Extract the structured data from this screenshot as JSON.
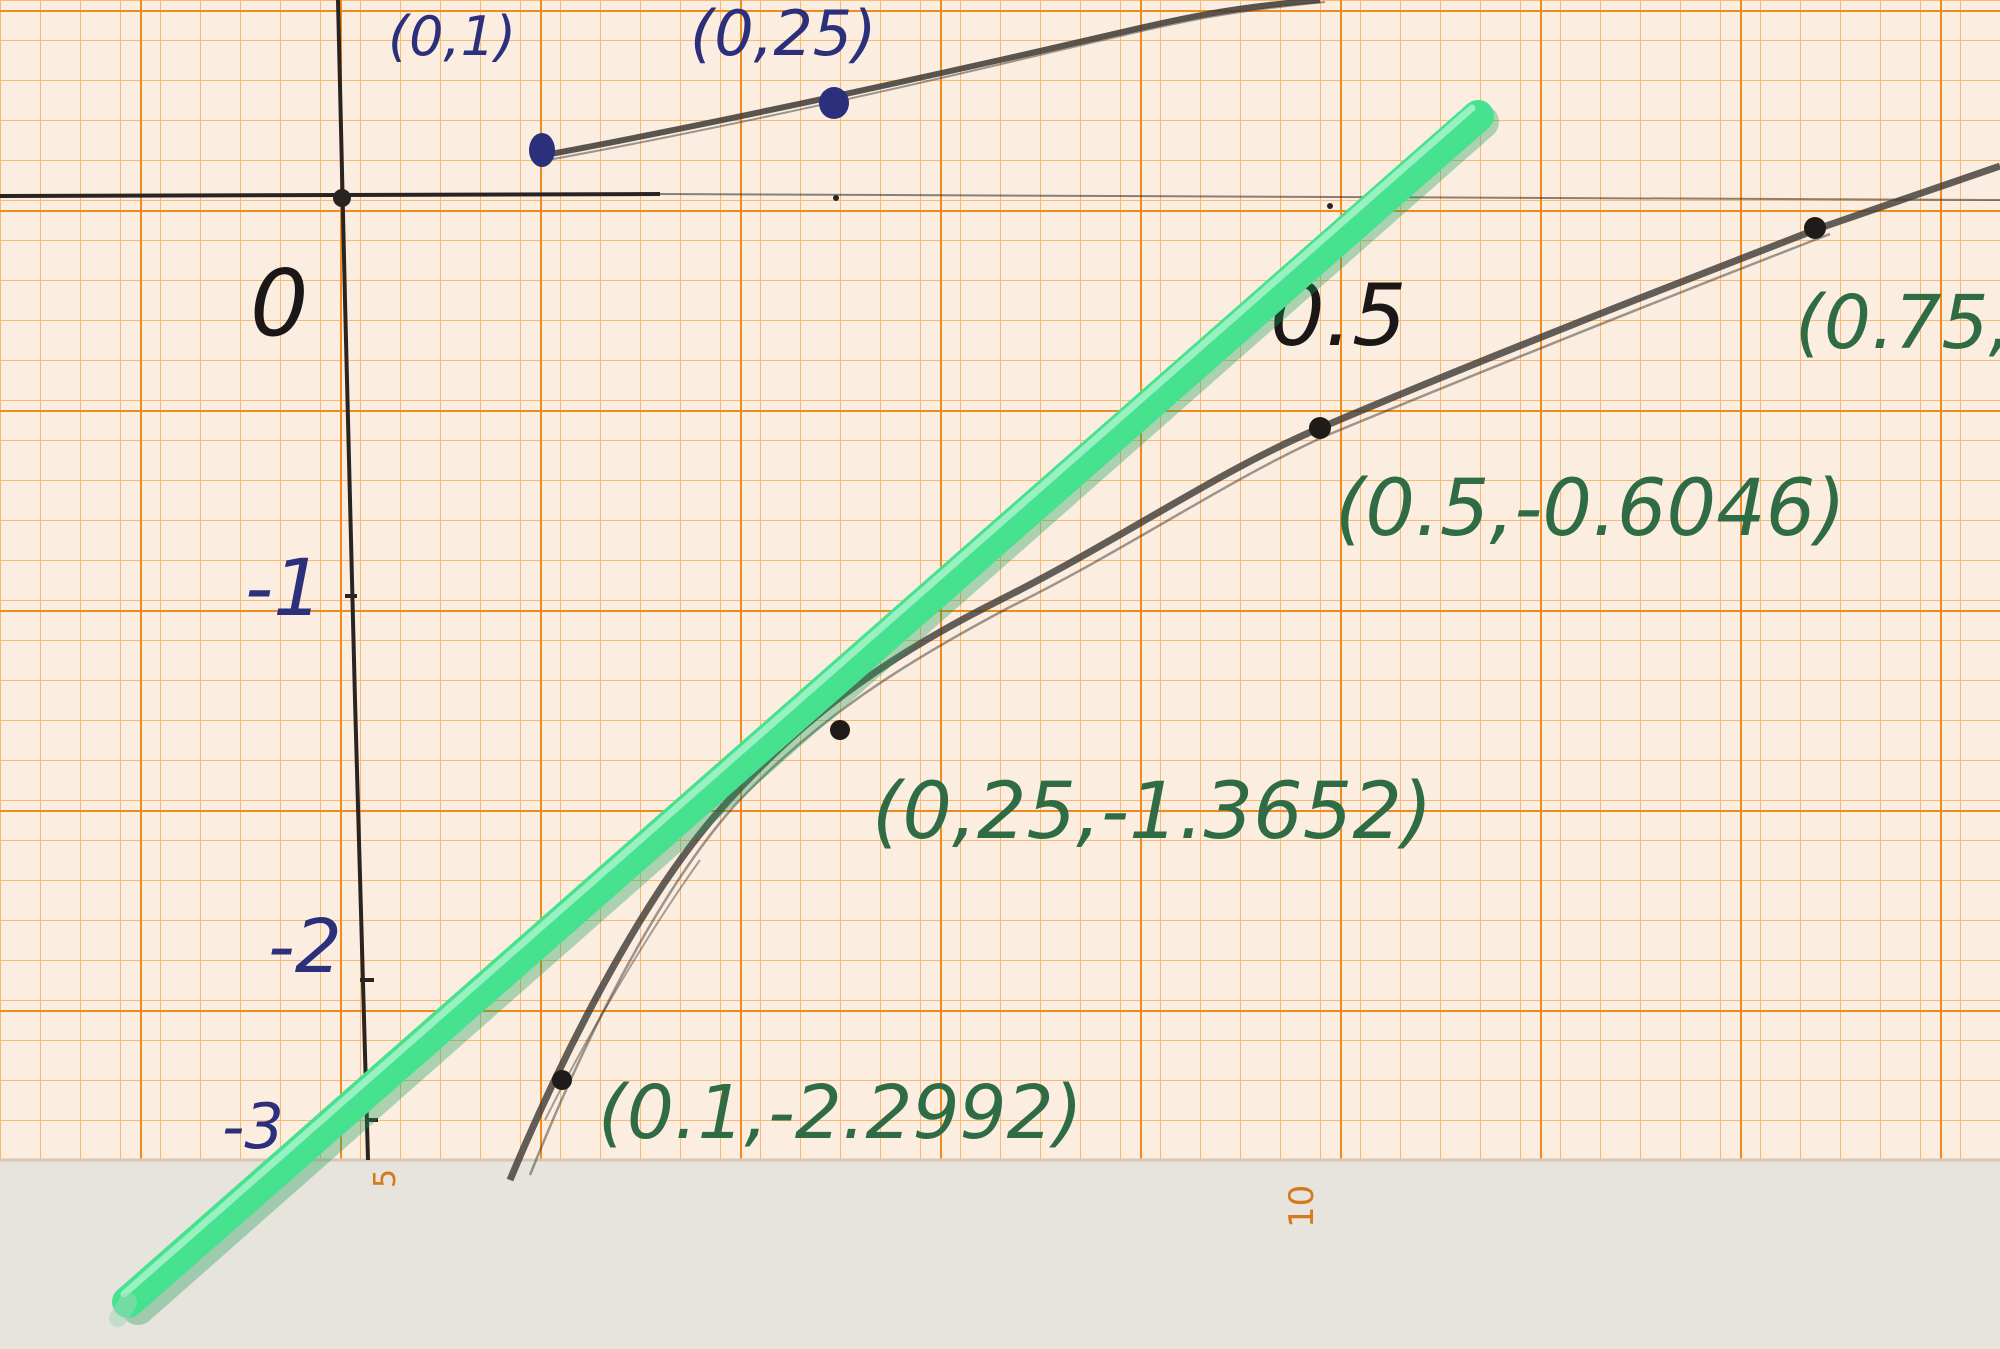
{
  "scene": {
    "colors": {
      "paper": "#fbeee0",
      "grid_major": "#f08c1e",
      "grid_minor": "#f6ba72",
      "bottom_strip": "#e7e3dd",
      "axis_ink": "#2a2421",
      "blue_ink": "#2c2f7a",
      "green_ink": "#2f6b45",
      "pencil": "#3d3835",
      "straw": "#3fe28c",
      "straw_highlight": "#b5f7d2"
    },
    "axis_labels": {
      "origin": "0",
      "y_minus_1": "-1",
      "y_minus_2": "-2",
      "y_minus_3": "-3",
      "x_half_marker": "0.5"
    },
    "edge_numbers": {
      "five": "5",
      "ten": "10"
    },
    "upper_curve_labels": {
      "first": "(0,1)",
      "second": "(0,25)"
    },
    "lower_curve_labels": {
      "point_0_1": "(0.1,-2.2992)",
      "point_0_25": "(0,25,-1.3652)",
      "point_0_5": "(0.5,-0.6046)",
      "point_0_75": "(0.75,"
    },
    "objects": {
      "straw_icon": "green-drinking-straw",
      "pencil_curve": "ln-curve"
    }
  }
}
